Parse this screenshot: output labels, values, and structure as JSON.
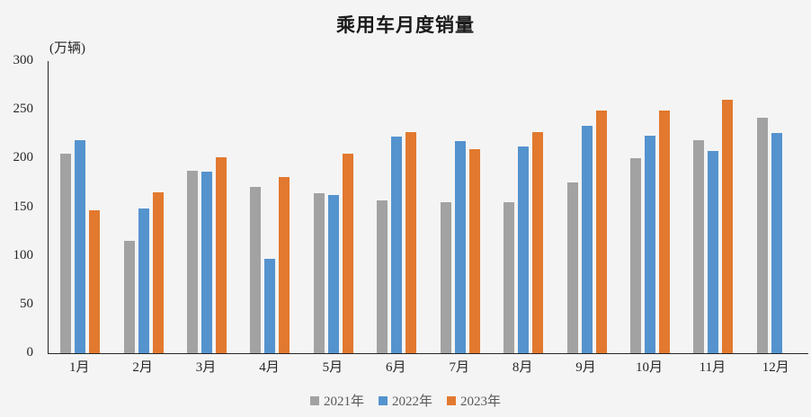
{
  "chart_data": {
    "type": "bar",
    "title": "乘用车月度销量",
    "unit_label": "(万辆)",
    "categories": [
      "1月",
      "2月",
      "3月",
      "4月",
      "5月",
      "6月",
      "7月",
      "8月",
      "9月",
      "10月",
      "11月",
      "12月"
    ],
    "series": [
      {
        "name": "2021年",
        "color": "#a2a2a2",
        "values": [
          204.5,
          115.6,
          187.4,
          170.4,
          164.6,
          156.9,
          155.1,
          155.2,
          175.1,
          200.7,
          219.2,
          242.2
        ]
      },
      {
        "name": "2022年",
        "color": "#5593ce",
        "values": [
          218.6,
          148.7,
          186.4,
          96.5,
          162.3,
          222.2,
          217.4,
          212.5,
          233.2,
          223.1,
          207.5,
          226.3
        ]
      },
      {
        "name": "2023年",
        "color": "#e2792f",
        "values": [
          146.9,
          165.3,
          201.7,
          181.1,
          205.1,
          226.8,
          210.0,
          227.5,
          248.9,
          249.4,
          260.4,
          null
        ]
      }
    ],
    "ylim": [
      0,
      300
    ],
    "yticks": [
      0,
      50,
      100,
      150,
      200,
      250,
      300
    ],
    "grid": false,
    "legend_position": "bottom",
    "colors": {
      "background": "#f4f4f4",
      "axis": "#262626",
      "title_text": "#1a1a1a",
      "tick_text": "#262626",
      "legend_text": "#595959"
    }
  }
}
